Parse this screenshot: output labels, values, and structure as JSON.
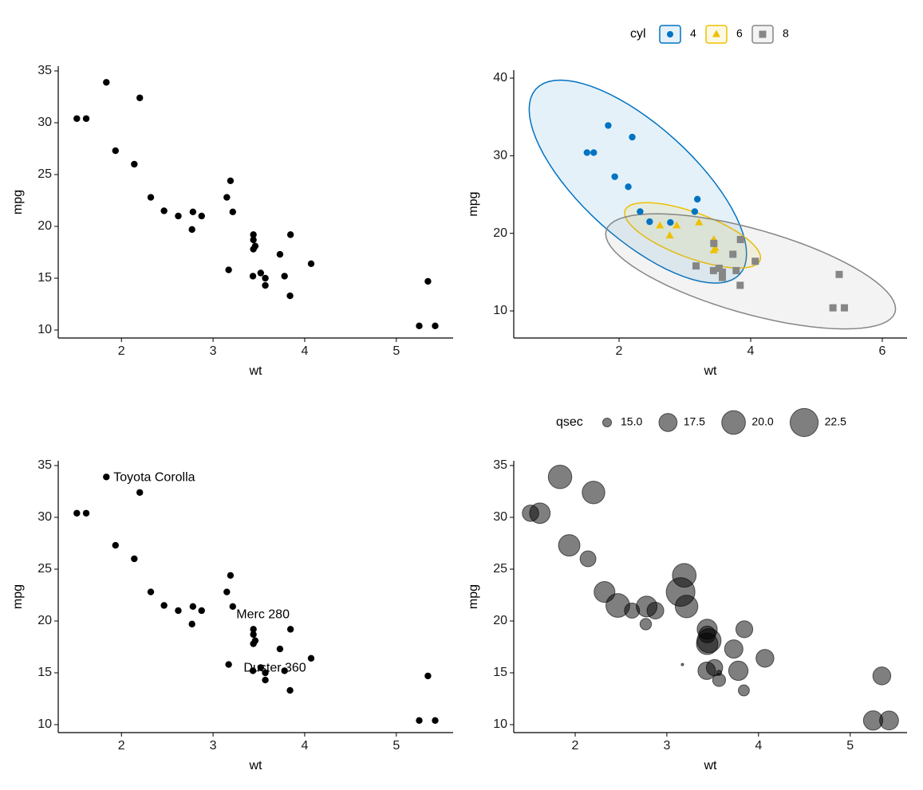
{
  "chart_data": [
    {
      "type": "scatter",
      "xlabel": "wt",
      "ylabel": "mpg",
      "color": "#000000",
      "x": [
        2.62,
        2.875,
        2.32,
        3.215,
        3.44,
        3.46,
        3.57,
        3.19,
        3.15,
        3.44,
        3.44,
        4.07,
        3.73,
        3.78,
        5.25,
        5.424,
        5.345,
        2.2,
        1.615,
        1.835,
        2.465,
        3.52,
        3.435,
        3.84,
        3.845,
        1.935,
        2.14,
        1.513,
        3.17,
        2.77,
        3.57,
        2.78
      ],
      "values": [
        21,
        21,
        22.8,
        21.4,
        18.7,
        18.1,
        14.3,
        24.4,
        22.8,
        19.2,
        17.8,
        16.4,
        17.3,
        15.2,
        10.4,
        10.4,
        14.7,
        32.4,
        30.4,
        33.9,
        21.5,
        15.5,
        15.2,
        13.3,
        19.2,
        27.3,
        26,
        30.4,
        15.8,
        19.7,
        15,
        21.4
      ],
      "xlim": [
        1.31,
        5.62
      ],
      "ylim": [
        9.23,
        35.46
      ],
      "xticks": [
        2,
        3,
        4,
        5
      ],
      "yticks": [
        10,
        15,
        20,
        25,
        30,
        35
      ]
    },
    {
      "type": "scatter",
      "xlabel": "wt",
      "ylabel": "mpg",
      "legend_title": "cyl",
      "legend_position": "top",
      "ellipse": true,
      "series": [
        {
          "name": "4",
          "color": "#0073C2",
          "shape": "circle",
          "x": [
            2.32,
            3.19,
            3.15,
            2.2,
            1.615,
            1.835,
            2.465,
            1.935,
            2.14,
            1.513,
            2.78
          ],
          "values": [
            22.8,
            24.4,
            22.8,
            32.4,
            30.4,
            33.9,
            21.5,
            27.3,
            26,
            30.4,
            21.4
          ]
        },
        {
          "name": "6",
          "color": "#EFC000",
          "shape": "triangle",
          "x": [
            2.62,
            2.875,
            3.215,
            3.46,
            3.44,
            3.44,
            2.77
          ],
          "values": [
            21,
            21,
            21.4,
            18.1,
            19.2,
            17.8,
            19.7
          ]
        },
        {
          "name": "8",
          "color": "#868686",
          "shape": "square",
          "x": [
            3.44,
            3.57,
            4.07,
            3.73,
            3.78,
            5.25,
            5.424,
            5.345,
            3.52,
            3.435,
            3.84,
            3.845,
            3.17,
            3.57
          ],
          "values": [
            18.7,
            14.3,
            16.4,
            17.3,
            15.2,
            10.4,
            10.4,
            14.7,
            15.5,
            15.2,
            13.3,
            19.2,
            15.8,
            15
          ]
        }
      ],
      "xlim": [
        0.4,
        6.376
      ],
      "ylim": [
        6.51,
        41.03
      ],
      "xticks": [
        2,
        4,
        6
      ],
      "yticks": [
        10,
        20,
        30,
        40
      ]
    },
    {
      "type": "scatter",
      "xlabel": "wt",
      "ylabel": "mpg",
      "color": "#000000",
      "x": [
        2.62,
        2.875,
        2.32,
        3.215,
        3.44,
        3.46,
        3.57,
        3.19,
        3.15,
        3.44,
        3.44,
        4.07,
        3.73,
        3.78,
        5.25,
        5.424,
        5.345,
        2.2,
        1.615,
        1.835,
        2.465,
        3.52,
        3.435,
        3.84,
        3.845,
        1.935,
        2.14,
        1.513,
        3.17,
        2.77,
        3.57,
        2.78
      ],
      "values": [
        21,
        21,
        22.8,
        21.4,
        18.7,
        18.1,
        14.3,
        24.4,
        22.8,
        19.2,
        17.8,
        16.4,
        17.3,
        15.2,
        10.4,
        10.4,
        14.7,
        32.4,
        30.4,
        33.9,
        21.5,
        15.5,
        15.2,
        13.3,
        19.2,
        27.3,
        26,
        30.4,
        15.8,
        19.7,
        15,
        21.4
      ],
      "labels": [
        null,
        null,
        null,
        null,
        null,
        null,
        "Duster 360",
        null,
        null,
        "Merc 280",
        null,
        null,
        null,
        null,
        null,
        null,
        null,
        null,
        null,
        "Toyota Corolla",
        null,
        null,
        null,
        null,
        null,
        null,
        null,
        null,
        null,
        null,
        null,
        null
      ],
      "xlim": [
        1.31,
        5.62
      ],
      "ylim": [
        9.23,
        35.46
      ],
      "xticks": [
        2,
        3,
        4,
        5
      ],
      "yticks": [
        10,
        15,
        20,
        25,
        30,
        35
      ]
    },
    {
      "type": "scatter",
      "xlabel": "wt",
      "ylabel": "mpg",
      "color": "#000000",
      "alpha": 0.5,
      "legend_position": "top",
      "x": [
        2.62,
        2.875,
        2.32,
        3.215,
        3.44,
        3.46,
        3.57,
        3.19,
        3.15,
        3.44,
        3.44,
        4.07,
        3.73,
        3.78,
        5.25,
        5.424,
        5.345,
        2.2,
        1.615,
        1.835,
        2.465,
        3.52,
        3.435,
        3.84,
        3.845,
        1.935,
        2.14,
        1.513,
        3.17,
        2.77,
        3.57,
        2.78
      ],
      "values": [
        21,
        21,
        22.8,
        21.4,
        18.7,
        18.1,
        14.3,
        24.4,
        22.8,
        19.2,
        17.8,
        16.4,
        17.3,
        15.2,
        10.4,
        10.4,
        14.7,
        32.4,
        30.4,
        33.9,
        21.5,
        15.5,
        15.2,
        13.3,
        19.2,
        27.3,
        26,
        30.4,
        15.8,
        19.7,
        15,
        21.4
      ],
      "sizes": [
        16.46,
        17.02,
        18.61,
        19.44,
        17.02,
        20.22,
        15.84,
        20,
        22.9,
        18.3,
        18.9,
        17.4,
        17.6,
        18,
        17.98,
        17.82,
        17.42,
        19.47,
        18.52,
        19.9,
        20.01,
        16.87,
        17.3,
        15.41,
        17.05,
        18.9,
        16.7,
        16.9,
        14.5,
        15.5,
        14.6,
        18.6
      ],
      "size_title": "qsec",
      "size_ticks": [
        {
          "value": 15,
          "label": "15.0"
        },
        {
          "value": 17.5,
          "label": "17.5"
        },
        {
          "value": 20,
          "label": "20.0"
        },
        {
          "value": 22.5,
          "label": "22.5"
        }
      ],
      "xlim": [
        1.33,
        5.62
      ],
      "ylim": [
        9.23,
        35.46
      ],
      "xticks": [
        2,
        3,
        4,
        5
      ],
      "yticks": [
        10,
        15,
        20,
        25,
        30,
        35
      ]
    }
  ]
}
